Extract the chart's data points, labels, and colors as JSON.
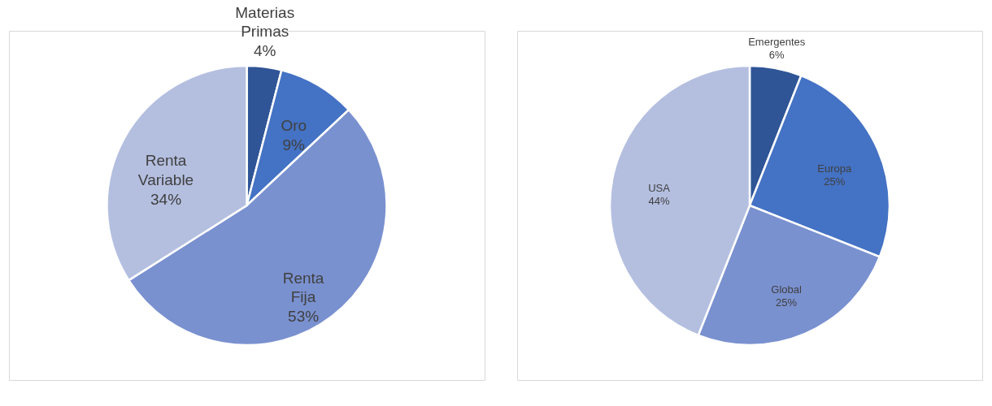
{
  "chart_data": [
    {
      "type": "pie",
      "categories": [
        "Materias Primas",
        "Oro",
        "Renta Fija",
        "Renta Variable"
      ],
      "values": [
        4,
        9,
        53,
        34
      ],
      "value_labels": [
        "4%",
        "9%",
        "53%",
        "34%"
      ],
      "colors": [
        "#2f5597",
        "#4472c4",
        "#7a91d0",
        "#b4bfe0"
      ],
      "legend": false
    },
    {
      "type": "pie",
      "categories": [
        "Emergentes",
        "Europa",
        "Global",
        "USA"
      ],
      "values": [
        6,
        25,
        25,
        44
      ],
      "value_labels": [
        "6%",
        "25%",
        "25%",
        "44%"
      ],
      "colors": [
        "#2f5597",
        "#4472c4",
        "#7a91d0",
        "#b4bfe0"
      ],
      "legend": false
    }
  ]
}
